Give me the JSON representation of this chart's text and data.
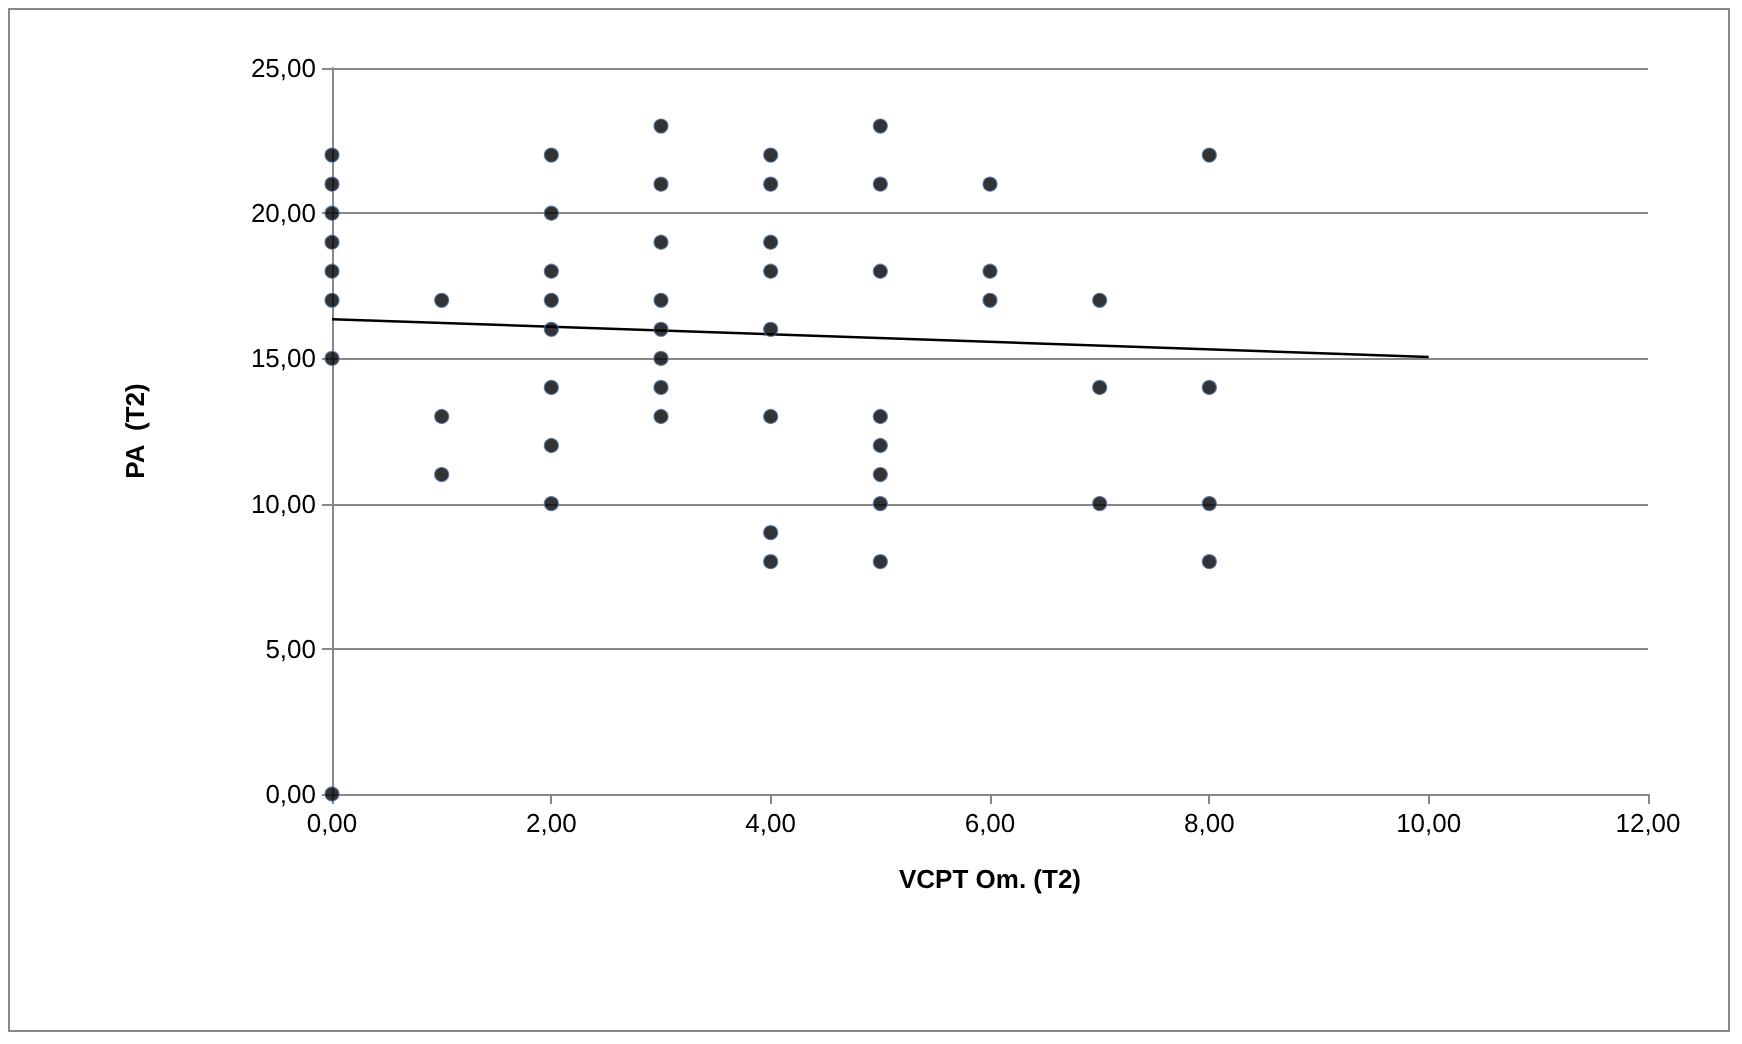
{
  "chart_data": {
    "type": "scatter",
    "xlabel": "VCPT Om. (T2)",
    "ylabel": "PA  (T2)",
    "series": [
      {
        "color": "#000000",
        "marker": "circle",
        "x": [
          0,
          0,
          0,
          0,
          0,
          0,
          0,
          0,
          1,
          1,
          1,
          2,
          2,
          2,
          2,
          2,
          2,
          2,
          2,
          3,
          3,
          3,
          3,
          3,
          3,
          3,
          3,
          4,
          4,
          4,
          4,
          4,
          4,
          4,
          4,
          5,
          5,
          5,
          5,
          5,
          5,
          5,
          5,
          6,
          6,
          6,
          7,
          7,
          7,
          8,
          8,
          8,
          8
        ],
        "values": [
          22,
          21,
          20,
          19,
          18,
          17,
          15,
          0,
          17,
          13,
          11,
          22,
          20,
          18,
          17,
          16,
          14,
          12,
          10,
          23,
          21,
          19,
          17,
          16,
          15,
          14,
          13,
          22,
          21,
          19,
          18,
          16,
          13,
          9,
          8,
          23,
          21,
          18,
          13,
          12,
          11,
          10,
          8,
          21,
          18,
          17,
          17,
          14,
          10,
          22,
          14,
          10,
          8
        ]
      },
      {
        "type": "line",
        "color": "#000000",
        "marker": "none",
        "x": [
          0,
          10
        ],
        "values": [
          16.35,
          15.05
        ]
      }
    ],
    "xlim": [
      0,
      12
    ],
    "xticks": [
      {
        "value": 0,
        "label": "0,00"
      },
      {
        "value": 2,
        "label": "2,00"
      },
      {
        "value": 4,
        "label": "4,00"
      },
      {
        "value": 6,
        "label": "6,00"
      },
      {
        "value": 8,
        "label": "8,00"
      },
      {
        "value": 10,
        "label": "10,00"
      },
      {
        "value": 12,
        "label": "12,00"
      }
    ],
    "ylim": [
      0,
      25
    ],
    "yticks": [
      {
        "value": 0,
        "label": "0,00"
      },
      {
        "value": 5,
        "label": "5,00"
      },
      {
        "value": 10,
        "label": "10,00"
      },
      {
        "value": 15,
        "label": "15,00"
      },
      {
        "value": 20,
        "label": "20,00"
      },
      {
        "value": 25,
        "label": "25,00"
      }
    ],
    "grid": "y"
  }
}
